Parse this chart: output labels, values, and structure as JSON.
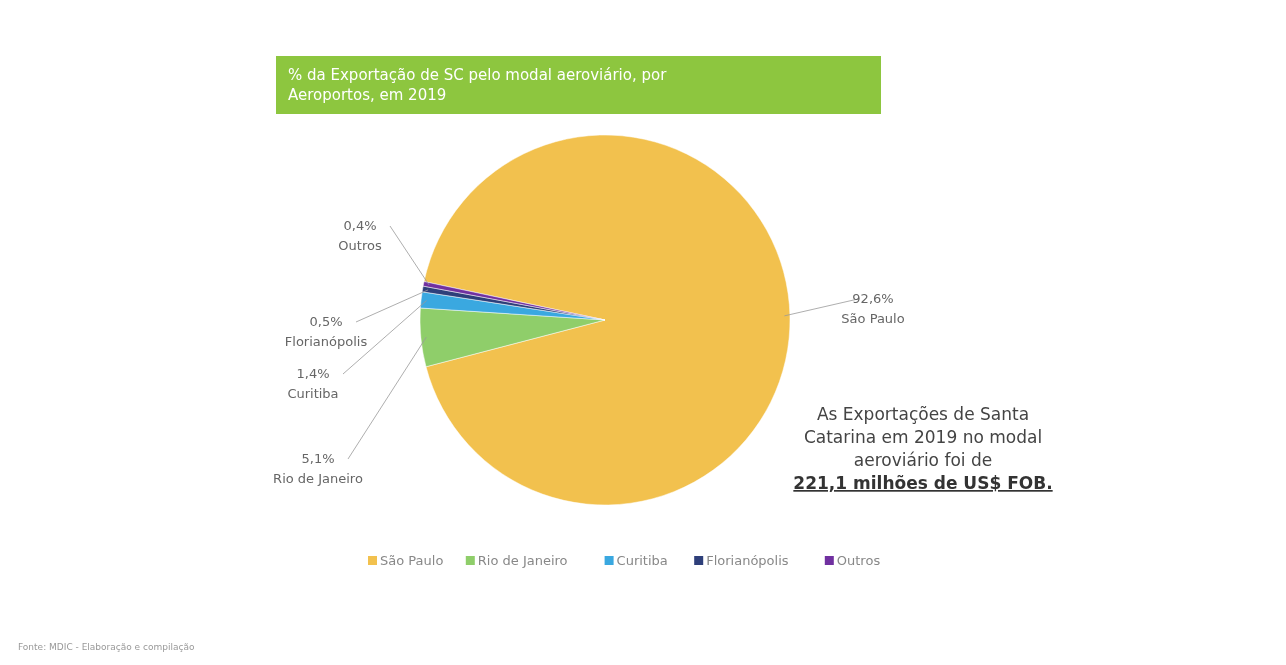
{
  "chart_data": {
    "type": "pie",
    "title": "% da Exportação de SC pelo modal aeroviário, por Aeroportos, em 2019",
    "categories": [
      "São Paulo",
      "Rio de Janeiro",
      "Curitiba",
      "Florianópolis",
      "Outros"
    ],
    "values": [
      92.6,
      5.1,
      1.4,
      0.5,
      0.4
    ],
    "value_labels": [
      "92,6%",
      "5,1%",
      "1,4%",
      "0,5%",
      "0,4%"
    ],
    "colors": [
      "#f2c14e",
      "#8fce6a",
      "#3aa8e0",
      "#2e3f7a",
      "#7030a0"
    ],
    "legend": "bottom",
    "annotations": [
      "As Exportações de Santa Catarina em 2019 no modal aeroviário foi de",
      "221,1 milhões de US$ FOB.",
      "Fonte: MDIC - Elaboração e compilação"
    ]
  }
}
